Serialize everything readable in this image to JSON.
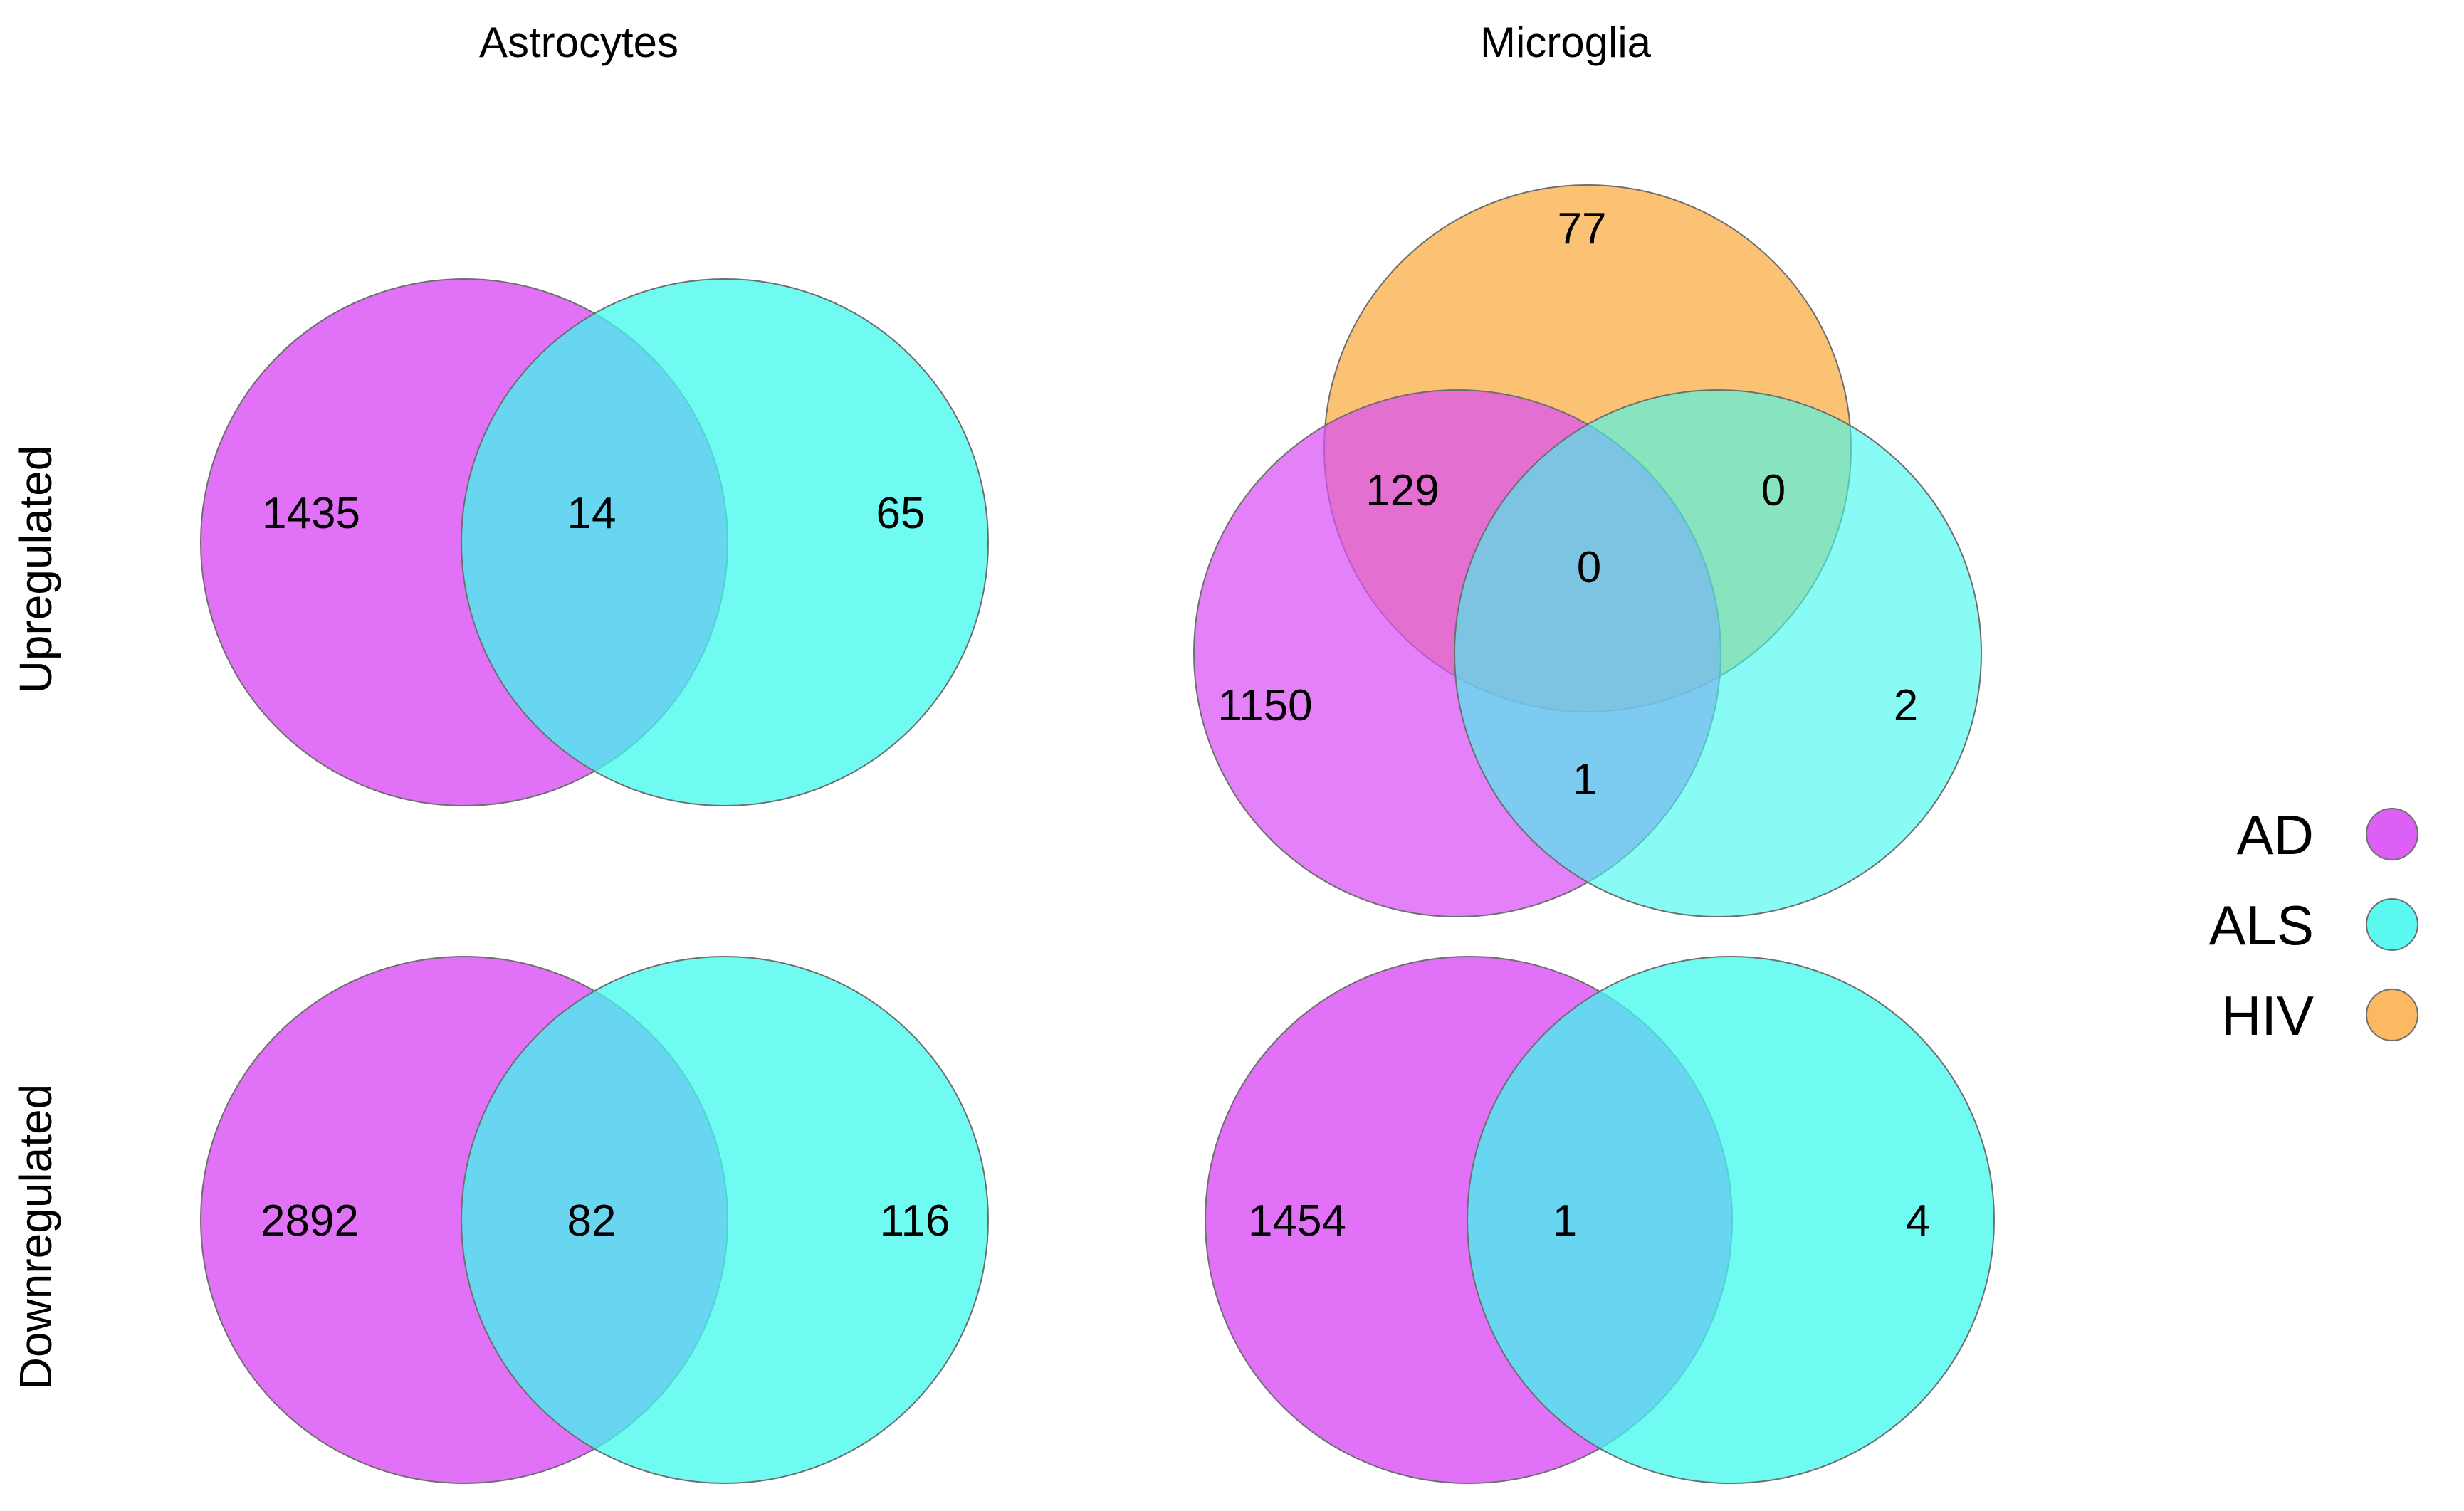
{
  "column_titles": [
    "Astrocytes",
    "Microglia"
  ],
  "row_titles": [
    "Upregulated",
    "Downregulated"
  ],
  "colors": {
    "AD": "#d94ff5",
    "ALS": "#3ff8ee",
    "HIV": "#fbb351",
    "AD_ALS_overlap": "#63bff2"
  },
  "legend": [
    {
      "label": "AD",
      "color": "#d94ff5"
    },
    {
      "label": "ALS",
      "color": "#3ff8ee"
    },
    {
      "label": "HIV",
      "color": "#fbb351"
    }
  ],
  "venn": {
    "astrocytes_up": {
      "AD_only": "1435",
      "AD_ALS": "14",
      "ALS_only": "65"
    },
    "astrocytes_down": {
      "AD_only": "2892",
      "AD_ALS": "82",
      "ALS_only": "116"
    },
    "microglia_up": {
      "HIV_only": "77",
      "AD_HIV": "129",
      "ALS_HIV": "0",
      "AD_ALS_HIV": "0",
      "AD_only": "1150",
      "ALS_only": "2",
      "AD_ALS": "1"
    },
    "microglia_down": {
      "AD_only": "1454",
      "AD_ALS": "1",
      "ALS_only": "4"
    }
  }
}
